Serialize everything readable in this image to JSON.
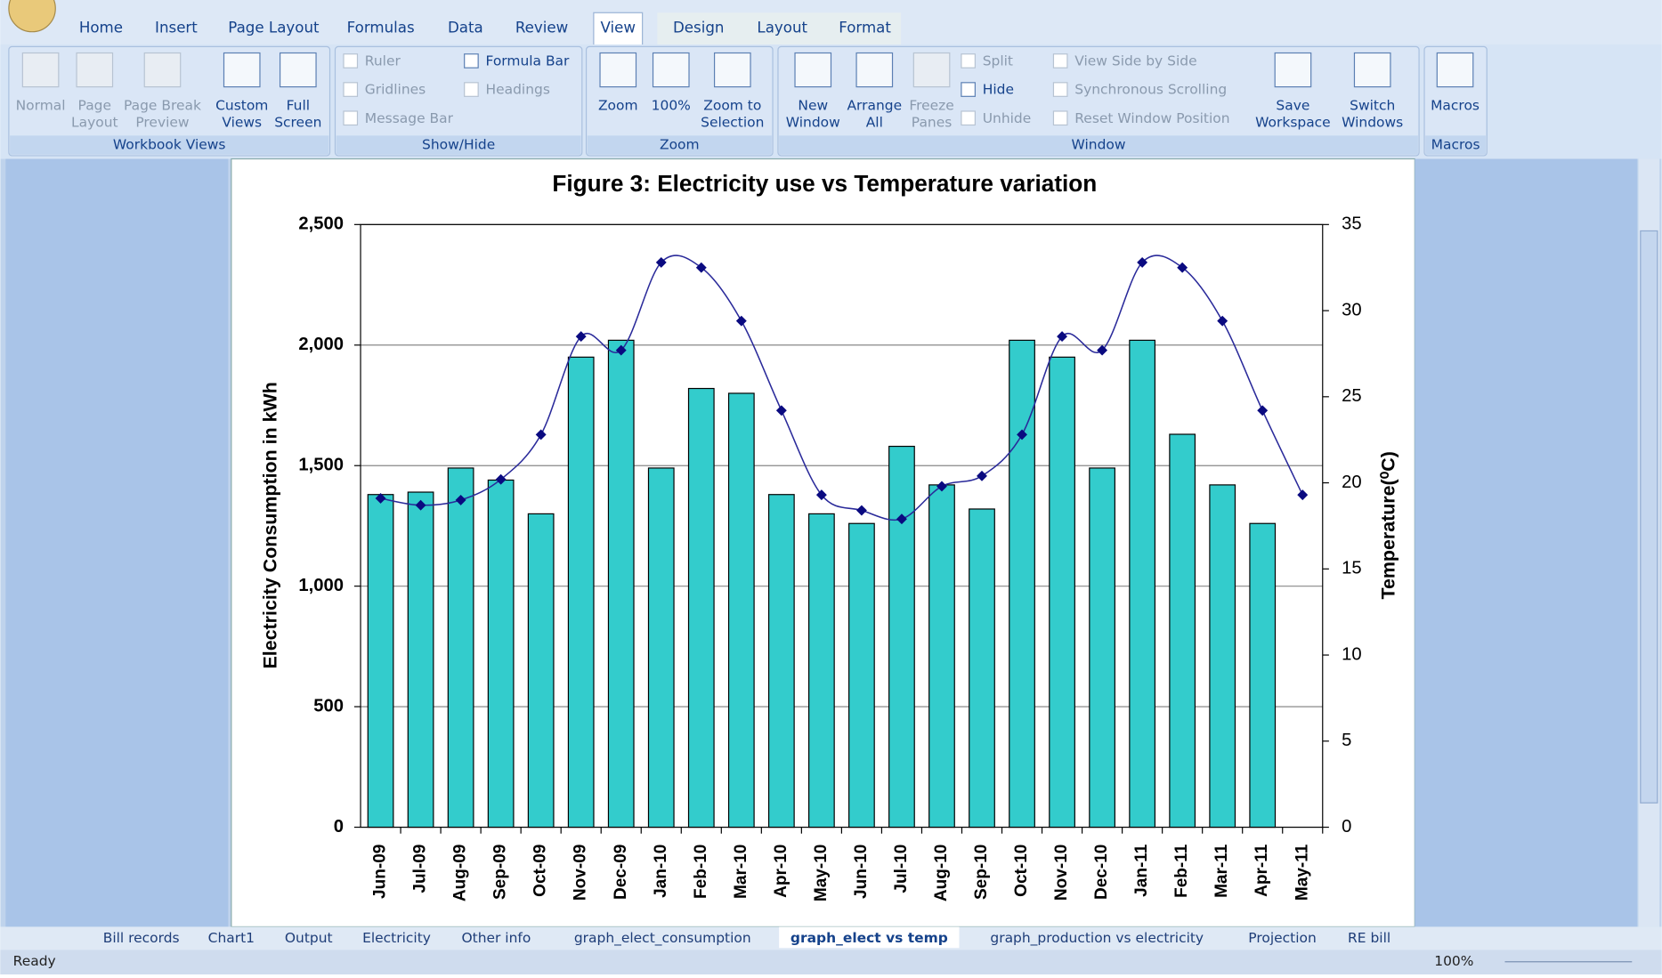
{
  "ribbon": {
    "tabs": [
      "Home",
      "Insert",
      "Page Layout",
      "Formulas",
      "Data",
      "Review",
      "View",
      "Design",
      "Layout",
      "Format"
    ],
    "groups": [
      {
        "label": "Workbook Views",
        "buttons": [
          {
            "lines": [
              "Normal"
            ]
          },
          {
            "lines": [
              "Page",
              "Layout"
            ]
          },
          {
            "lines": [
              "Page Break",
              "Preview"
            ]
          },
          {
            "lines": [
              "Custom",
              "Views"
            ]
          },
          {
            "lines": [
              "Full",
              "Screen"
            ]
          }
        ],
        "options": []
      },
      {
        "label": "Show/Hide",
        "buttons": [],
        "options": [
          "Ruler",
          "Gridlines",
          "Message Bar",
          "Formula Bar",
          "Headings"
        ]
      },
      {
        "label": "Zoom",
        "buttons": [
          {
            "lines": [
              "Zoom"
            ]
          },
          {
            "lines": [
              "100%"
            ]
          },
          {
            "lines": [
              "Zoom to",
              "Selection"
            ]
          }
        ],
        "options": []
      },
      {
        "label": "Window",
        "buttons": [
          {
            "lines": [
              "New",
              "Window"
            ]
          },
          {
            "lines": [
              "Arrange",
              "All"
            ]
          },
          {
            "lines": [
              "Freeze",
              "Panes"
            ]
          },
          {
            "lines": [
              "Save",
              "Workspace"
            ]
          },
          {
            "lines": [
              "Switch",
              "Windows"
            ]
          }
        ],
        "options": [
          "Split",
          "Hide",
          "Unhide",
          "View Side by Side",
          "Synchronous Scrolling",
          "Reset Window Position"
        ]
      },
      {
        "label": "Macros",
        "buttons": [
          {
            "lines": [
              "Macros"
            ]
          }
        ],
        "options": []
      }
    ]
  },
  "chart_data": {
    "type": "bar-line",
    "title": "Figure 3: Electricity use vs Temperature variation",
    "ylabel": "Electricity Consumption in kWh",
    "y2label": "Temperature(⁰C)",
    "categories": [
      "Jun-09",
      "Jul-09",
      "Aug-09",
      "Sep-09",
      "Oct-09",
      "Nov-09",
      "Dec-09",
      "Jan-10",
      "Feb-10",
      "Mar-10",
      "Apr-10",
      "May-10",
      "Jun-10",
      "Jul-10",
      "Aug-10",
      "Sep-10",
      "Oct-10",
      "Nov-10",
      "Dec-10",
      "Jan-11",
      "Feb-11",
      "Mar-11",
      "Apr-11",
      "May-11"
    ],
    "series": [
      {
        "type": "bar",
        "color": "#33cccc",
        "values": [
          1380,
          1390,
          1490,
          1440,
          1300,
          1950,
          2020,
          1490,
          1820,
          1800,
          1380,
          1300,
          1260,
          1580,
          1420,
          1320,
          2020,
          1950,
          1490,
          2020,
          1630,
          1420,
          1260,
          null
        ]
      },
      {
        "type": "line",
        "color": "#2a2a9a",
        "axis": "y2",
        "values": [
          19.1,
          18.7,
          19.0,
          20.2,
          22.8,
          28.5,
          27.7,
          32.8,
          32.5,
          29.4,
          24.2,
          19.3,
          18.4,
          17.9,
          19.8,
          20.4,
          22.8,
          28.5,
          27.7,
          32.8,
          32.5,
          29.4,
          24.2,
          19.3
        ]
      }
    ],
    "ylim": [
      0,
      2500
    ],
    "yticks": [
      0,
      500,
      {
        "value": 1000,
        "label": "1,000"
      },
      {
        "value": 1500,
        "label": "1,500"
      },
      {
        "value": 2000,
        "label": "2,000"
      },
      {
        "value": 2500,
        "label": "2,500"
      }
    ],
    "y2lim": [
      0,
      35
    ],
    "y2ticks": [
      0,
      5,
      10,
      15,
      20,
      25,
      30,
      35
    ],
    "grid": true
  },
  "sheet_tabs": [
    "Bill records",
    "Chart1",
    "Output",
    "Electricity",
    "Other info",
    "graph_elect_consumption",
    "graph_elect vs temp",
    "graph_production vs electricity",
    "Projection",
    "RE bill"
  ],
  "status": {
    "ready": "Ready",
    "zoom": "100%"
  }
}
